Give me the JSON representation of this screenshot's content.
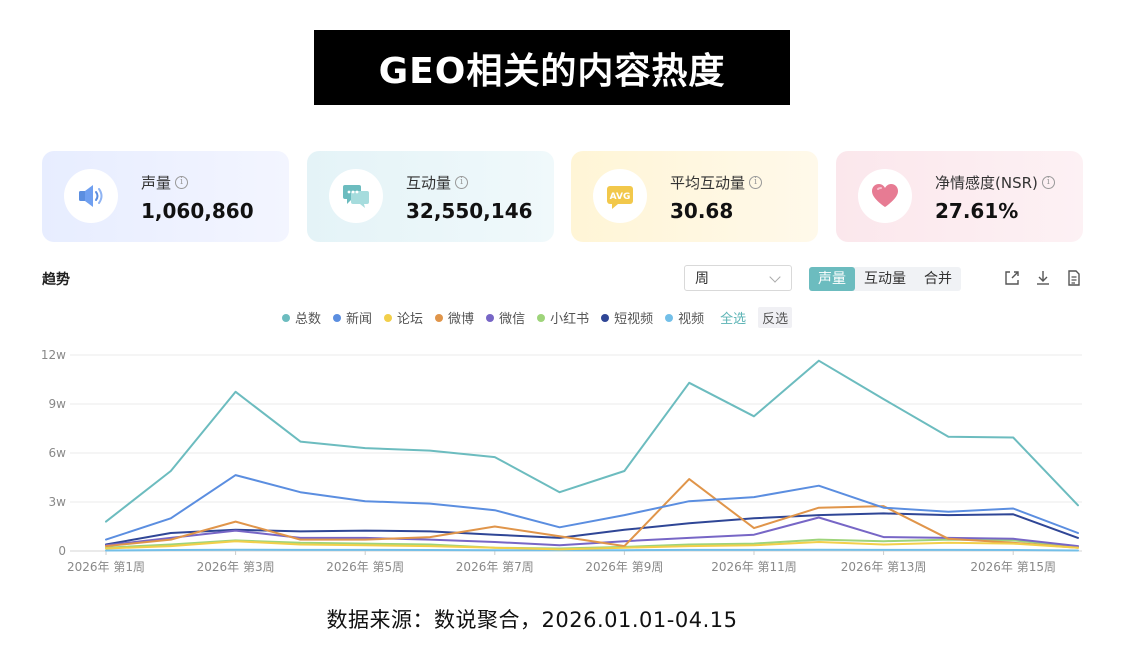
{
  "title": "GEO相关的内容热度",
  "kpis": [
    {
      "label": "声量",
      "value": "1,060,860",
      "icon": "speaker-icon",
      "bg": "#eaf0ff"
    },
    {
      "label": "互动量",
      "value": "32,550,146",
      "icon": "chat-icon",
      "bg": "#e9f6f9"
    },
    {
      "label": "平均互动量",
      "value": "30.68",
      "icon": "avg-badge-icon",
      "bg": "#fff7e0"
    },
    {
      "label": "净情感度(NSR)",
      "value": "27.61%",
      "icon": "heart-icon",
      "bg": "#fcecf0"
    }
  ],
  "trend": {
    "title": "趋势",
    "period_select": "周",
    "metric_tabs": [
      "声量",
      "互动量",
      "合并"
    ],
    "active_tab": "声量"
  },
  "legend": {
    "select_all": "全选",
    "invert": "反选"
  },
  "chart_data": {
    "type": "line",
    "x": [
      "2026年 第1周",
      "2026年 第2周",
      "2026年 第3周",
      "2026年 第4周",
      "2026年 第5周",
      "2026年 第6周",
      "2026年 第7周",
      "2026年 第8周",
      "2026年 第9周",
      "2026年 第10周",
      "2026年 第11周",
      "2026年 第12周",
      "2026年 第13周",
      "2026年 第14周",
      "2026年 第15周",
      "2026年 第16周"
    ],
    "x_tick_labels": [
      "2026年 第1周",
      "2026年 第3周",
      "2026年 第5周",
      "2026年 第7周",
      "2026年 第9周",
      "2026年 第11周",
      "2026年 第13周",
      "2026年 第15周"
    ],
    "y_ticks": [
      "0",
      "3w",
      "6w",
      "9w",
      "12w"
    ],
    "ylim": [
      0,
      120000
    ],
    "grid": true,
    "legend_position": "top-center",
    "series": [
      {
        "name": "总数",
        "color": "#6cbcbf",
        "values": [
          18000,
          49000,
          97500,
          67000,
          63000,
          61500,
          57500,
          36000,
          49000,
          103000,
          82500,
          116500,
          93000,
          70000,
          69500,
          28000
        ]
      },
      {
        "name": "新闻",
        "color": "#5b8ee0",
        "values": [
          7000,
          20000,
          46500,
          36000,
          30500,
          29000,
          25000,
          14500,
          22000,
          30500,
          33000,
          40000,
          26500,
          24000,
          26000,
          11000
        ]
      },
      {
        "name": "论坛",
        "color": "#f2cf4a",
        "values": [
          1500,
          3000,
          6000,
          4000,
          3500,
          3000,
          2000,
          1000,
          2000,
          3000,
          3500,
          5500,
          4000,
          5000,
          4500,
          2000
        ]
      },
      {
        "name": "微博",
        "color": "#e0954a",
        "values": [
          3000,
          7000,
          18000,
          7000,
          7000,
          8500,
          15000,
          9000,
          3000,
          44000,
          14000,
          26500,
          27500,
          7500,
          5000,
          2000
        ]
      },
      {
        "name": "微信",
        "color": "#7766c6",
        "values": [
          3500,
          8000,
          12500,
          8000,
          8000,
          7000,
          5500,
          3500,
          6000,
          8000,
          10000,
          20500,
          8500,
          8000,
          7500,
          3000
        ]
      },
      {
        "name": "小红书",
        "color": "#9ed47a",
        "values": [
          2000,
          4000,
          6500,
          5000,
          4500,
          4000,
          2000,
          1500,
          2500,
          4000,
          4500,
          7000,
          6000,
          7000,
          6500,
          2500
        ]
      },
      {
        "name": "短视频",
        "color": "#2f4696",
        "values": [
          4000,
          11000,
          13000,
          12000,
          12500,
          12000,
          10000,
          8000,
          13000,
          17000,
          20000,
          22000,
          23000,
          22000,
          22500,
          8000
        ]
      },
      {
        "name": "视频",
        "color": "#73bfe8",
        "values": [
          300,
          600,
          800,
          700,
          700,
          600,
          500,
          400,
          500,
          700,
          700,
          800,
          700,
          700,
          600,
          300
        ]
      }
    ]
  },
  "footnote": "数据来源：数说聚合，2026.01.01-04.15"
}
